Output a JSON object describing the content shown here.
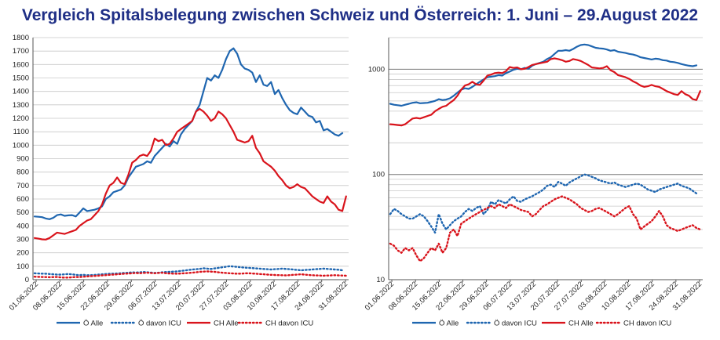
{
  "title": "Vergleich Spitalsbelegung zwischen Schweiz und Österreich: 1. Juni – 29.August 2022",
  "colors": {
    "title": "#1f2f86",
    "blue": "#1f66b0",
    "red": "#d9141c",
    "grid": "#c8c8c8",
    "logGrid": "#9a9a9a"
  },
  "chart_data": [
    {
      "type": "line",
      "scale": "linear",
      "ylim": [
        0,
        1800
      ],
      "yticks": [
        "0",
        "100",
        "200",
        "300",
        "400",
        "500",
        "600",
        "700",
        "800",
        "900",
        "1000",
        "1100",
        "1200",
        "1300",
        "1400",
        "1500",
        "1600",
        "1700",
        "1800"
      ],
      "ytick_values": [
        0,
        100,
        200,
        300,
        400,
        500,
        600,
        700,
        800,
        900,
        1000,
        1100,
        1200,
        1300,
        1400,
        1500,
        1600,
        1700,
        1800
      ],
      "xticks": [
        "01.06.2022",
        "08.06.2022",
        "15.06.2022",
        "22.06.2022",
        "29.06.2022",
        "06.07.2022",
        "13.07.2022",
        "20.07.2022",
        "27.07.2022",
        "03.08.2022",
        "10.08.2022",
        "17.08.2022",
        "24.08.2022",
        "31.08.2022"
      ],
      "grid": true,
      "legend": "bottom",
      "series": [
        {
          "name": "Ö Alle",
          "color": "#1f66b0",
          "dash": "solid",
          "values": [
            470,
            468,
            465,
            455,
            450,
            460,
            480,
            485,
            475,
            478,
            480,
            470,
            500,
            530,
            510,
            515,
            520,
            530,
            545,
            600,
            620,
            650,
            660,
            670,
            700,
            760,
            800,
            840,
            850,
            860,
            880,
            870,
            920,
            950,
            980,
            1010,
            990,
            1030,
            1010,
            1080,
            1120,
            1150,
            1180,
            1250,
            1300,
            1400,
            1500,
            1480,
            1520,
            1500,
            1560,
            1640,
            1700,
            1720,
            1680,
            1600,
            1570,
            1560,
            1540,
            1470,
            1520,
            1450,
            1440,
            1470,
            1380,
            1410,
            1350,
            1300,
            1260,
            1240,
            1230,
            1280,
            1250,
            1220,
            1210,
            1170,
            1180,
            1110,
            1120,
            1100,
            1080,
            1070,
            1090
          ]
        },
        {
          "name": "Ö davon ICU",
          "color": "#1f66b0",
          "dash": "dotted",
          "values": [
            48,
            46,
            45,
            44,
            42,
            40,
            38,
            38,
            40,
            42,
            40,
            36,
            34,
            36,
            33,
            34,
            35,
            38,
            40,
            42,
            44,
            45,
            46,
            48,
            50,
            52,
            55,
            53,
            55,
            57,
            55,
            53,
            50,
            52,
            55,
            57,
            58,
            60,
            62,
            65,
            68,
            72,
            75,
            78,
            80,
            85,
            82,
            80,
            84,
            88,
            92,
            96,
            100,
            98,
            95,
            92,
            90,
            88,
            86,
            84,
            82,
            80,
            78,
            76,
            78,
            80,
            82,
            80,
            78,
            75,
            72,
            70,
            72,
            74,
            76,
            78,
            80,
            82,
            80,
            78,
            76,
            74,
            70
          ]
        },
        {
          "name": "CH Alle",
          "color": "#d9141c",
          "dash": "solid",
          "values": [
            310,
            305,
            300,
            298,
            310,
            330,
            350,
            345,
            340,
            350,
            360,
            370,
            400,
            420,
            440,
            450,
            480,
            510,
            560,
            640,
            700,
            720,
            760,
            720,
            710,
            780,
            870,
            890,
            920,
            930,
            920,
            960,
            1050,
            1030,
            1040,
            1000,
            1010,
            1050,
            1100,
            1120,
            1140,
            1160,
            1180,
            1250,
            1270,
            1250,
            1220,
            1180,
            1200,
            1250,
            1230,
            1200,
            1150,
            1100,
            1040,
            1030,
            1020,
            1030,
            1070,
            980,
            940,
            880,
            860,
            840,
            810,
            770,
            740,
            700,
            680,
            690,
            710,
            690,
            680,
            650,
            620,
            600,
            580,
            570,
            620,
            580,
            560,
            520,
            510,
            620
          ]
        },
        {
          "name": "CH davon ICU",
          "color": "#d9141c",
          "dash": "dotted",
          "values": [
            22,
            21,
            20,
            19,
            18,
            19,
            20,
            17,
            15,
            16,
            18,
            20,
            19,
            22,
            24,
            26,
            28,
            30,
            32,
            34,
            36,
            38,
            40,
            42,
            44,
            46,
            48,
            50,
            48,
            50,
            52,
            50,
            48,
            50,
            52,
            48,
            46,
            45,
            44,
            46,
            48,
            50,
            52,
            55,
            58,
            60,
            62,
            60,
            58,
            55,
            52,
            50,
            48,
            46,
            44,
            45,
            47,
            48,
            46,
            44,
            42,
            40,
            38,
            36,
            35,
            34,
            33,
            32,
            34,
            36,
            38,
            40,
            38,
            35,
            33,
            32,
            31,
            30,
            31,
            32,
            33,
            32,
            31,
            30
          ]
        }
      ]
    },
    {
      "type": "line",
      "scale": "log",
      "ylim": [
        10,
        2000
      ],
      "yticks": [
        "10",
        "100",
        "1000"
      ],
      "ytick_values": [
        10,
        100,
        1000
      ],
      "xticks": [
        "01.06.2022",
        "08.06.2022",
        "15.06.2022",
        "22.06.2022",
        "29.06.2022",
        "06.07.2022",
        "13.07.2022",
        "20.07.2022",
        "27.07.2022",
        "03.08.2022",
        "10.08.2022",
        "17.08.2022",
        "24.08.2022",
        "31.08.2022"
      ],
      "grid": true,
      "legend": "bottom",
      "series": [
        {
          "name": "Ö Alle",
          "color": "#1f66b0",
          "dash": "solid",
          "values": [
            470,
            460,
            455,
            450,
            460,
            470,
            480,
            485,
            475,
            478,
            480,
            490,
            500,
            520,
            510,
            515,
            530,
            560,
            600,
            640,
            660,
            650,
            680,
            720,
            760,
            800,
            840,
            850,
            860,
            880,
            870,
            920,
            950,
            990,
            1010,
            1000,
            1030,
            1010,
            1080,
            1120,
            1150,
            1180,
            1250,
            1300,
            1400,
            1500,
            1500,
            1520,
            1500,
            1560,
            1640,
            1700,
            1720,
            1700,
            1650,
            1600,
            1580,
            1570,
            1540,
            1500,
            1520,
            1470,
            1450,
            1430,
            1400,
            1380,
            1350,
            1300,
            1280,
            1260,
            1240,
            1260,
            1250,
            1220,
            1210,
            1180,
            1170,
            1150,
            1120,
            1100,
            1080,
            1070,
            1090
          ]
        },
        {
          "name": "Ö davon ICU",
          "color": "#1f66b0",
          "dash": "dotted",
          "values": [
            42,
            47,
            45,
            42,
            40,
            38,
            38,
            40,
            42,
            40,
            36,
            32,
            28,
            42,
            34,
            30,
            33,
            36,
            38,
            40,
            44,
            47,
            45,
            48,
            50,
            42,
            46,
            55,
            52,
            57,
            55,
            53,
            58,
            62,
            56,
            55,
            58,
            60,
            62,
            65,
            68,
            72,
            78,
            80,
            76,
            85,
            82,
            78,
            84,
            88,
            92,
            96,
            100,
            98,
            95,
            92,
            88,
            86,
            84,
            82,
            84,
            80,
            78,
            76,
            78,
            80,
            82,
            80,
            76,
            72,
            70,
            68,
            72,
            74,
            76,
            78,
            80,
            82,
            78,
            76,
            74,
            70,
            66
          ]
        },
        {
          "name": "CH Alle",
          "color": "#d9141c",
          "dash": "solid",
          "values": [
            300,
            298,
            295,
            292,
            300,
            320,
            340,
            345,
            340,
            350,
            360,
            370,
            400,
            420,
            440,
            450,
            480,
            510,
            560,
            640,
            700,
            720,
            760,
            720,
            710,
            780,
            870,
            890,
            920,
            930,
            920,
            960,
            1050,
            1030,
            1040,
            1000,
            1010,
            1050,
            1100,
            1120,
            1140,
            1160,
            1180,
            1250,
            1270,
            1250,
            1220,
            1180,
            1200,
            1250,
            1230,
            1200,
            1150,
            1100,
            1040,
            1030,
            1020,
            1030,
            1070,
            980,
            940,
            880,
            860,
            840,
            810,
            770,
            740,
            700,
            680,
            690,
            710,
            690,
            680,
            650,
            620,
            600,
            580,
            570,
            620,
            580,
            560,
            520,
            510,
            620
          ]
        },
        {
          "name": "CH davon ICU",
          "color": "#d9141c",
          "dash": "dotted",
          "values": [
            22,
            21,
            19,
            18,
            20,
            19,
            20,
            17,
            15,
            16,
            18,
            20,
            19,
            22,
            18,
            20,
            28,
            30,
            26,
            34,
            36,
            38,
            40,
            42,
            44,
            46,
            48,
            50,
            48,
            52,
            50,
            48,
            52,
            50,
            48,
            46,
            45,
            44,
            40,
            42,
            46,
            50,
            52,
            55,
            58,
            60,
            62,
            60,
            58,
            55,
            52,
            48,
            46,
            44,
            45,
            47,
            48,
            46,
            44,
            42,
            40,
            42,
            45,
            48,
            50,
            42,
            38,
            30,
            32,
            34,
            36,
            40,
            45,
            40,
            33,
            31,
            30,
            29,
            30,
            31,
            32,
            33,
            31,
            30
          ]
        }
      ]
    }
  ]
}
